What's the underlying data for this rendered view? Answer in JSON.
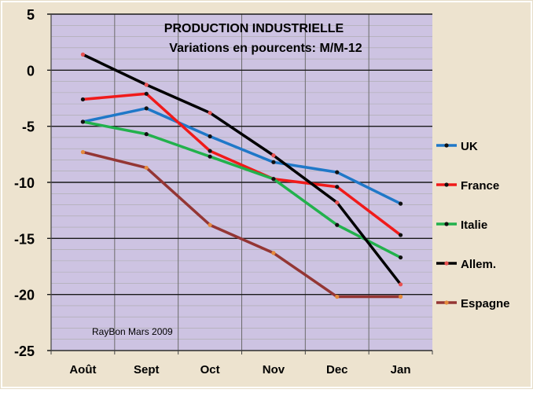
{
  "chart_data": {
    "type": "line",
    "title": "PRODUCTION INDUSTRIELLE",
    "subtitle": "Variations en pourcents:  M/M-12",
    "credit": "RayBon Mars 2009",
    "categories": [
      "Août",
      "Sept",
      "Oct",
      "Nov",
      "Dec",
      "Jan"
    ],
    "ylim": [
      -25,
      5
    ],
    "yticks": [
      5,
      0,
      -5,
      -10,
      -15,
      -20,
      -25
    ],
    "grid": true,
    "legend_position": "right",
    "colors": {
      "background": "#ffffff",
      "border": "#e6ddc9",
      "frame": "#ede3cf",
      "plot_area": "#cdc3e2",
      "grid_major": "#1a1a1a",
      "grid_minor": "#aaaaaa"
    },
    "series": [
      {
        "name": "UK",
        "color": "#1f78c8",
        "marker": "#111111",
        "values": [
          -4.6,
          -3.4,
          -5.9,
          -8.2,
          -9.1,
          -11.9
        ]
      },
      {
        "name": "France",
        "color": "#f01a1a",
        "marker": "#111111",
        "values": [
          -2.6,
          -2.1,
          -7.2,
          -9.7,
          -10.4,
          -14.7
        ]
      },
      {
        "name": "Italie",
        "color": "#22b14c",
        "marker": "#111111",
        "values": [
          -4.6,
          -5.7,
          -7.7,
          -9.7,
          -13.8,
          -16.7
        ]
      },
      {
        "name": "Allem.",
        "color": "#000000",
        "marker": "#e85050",
        "values": [
          1.4,
          -1.3,
          -3.8,
          -7.6,
          -11.8,
          -19.1
        ]
      },
      {
        "name": "Espagne",
        "color": "#943634",
        "marker": "#e58a3c",
        "values": [
          -7.3,
          -8.7,
          -13.8,
          -16.3,
          -20.2,
          -20.2
        ]
      }
    ]
  }
}
